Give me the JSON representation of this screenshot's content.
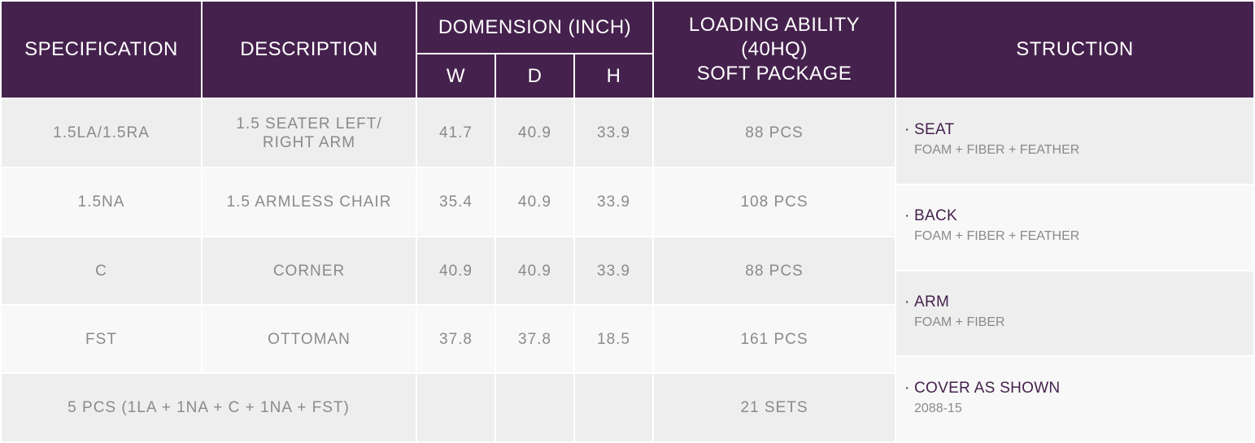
{
  "header": {
    "specification": "SPECIFICATION",
    "description": "DESCRIPTION",
    "dimension": "DOMENSION (INCH)",
    "w": "W",
    "d": "D",
    "h": "H",
    "loading_line1": "LOADING ABILITY",
    "loading_line2": "(40HQ)",
    "loading_line3": "SOFT PACKAGE",
    "structure": "STRUCTION"
  },
  "rows": [
    {
      "spec": "1.5LA/1.5RA",
      "desc_line1": "1.5 SEATER LEFT/",
      "desc_line2": "RIGHT ARM",
      "w": "41.7",
      "d": "40.9",
      "h": "33.9",
      "loading": "88 PCS"
    },
    {
      "spec": "1.5NA",
      "desc_line1": "1.5 ARMLESS CHAIR",
      "desc_line2": "",
      "w": "35.4",
      "d": "40.9",
      "h": "33.9",
      "loading": "108 PCS"
    },
    {
      "spec": "C",
      "desc_line1": "CORNER",
      "desc_line2": "",
      "w": "40.9",
      "d": "40.9",
      "h": "33.9",
      "loading": "88 PCS"
    },
    {
      "spec": "FST",
      "desc_line1": "OTTOMAN",
      "desc_line2": "",
      "w": "37.8",
      "d": "37.8",
      "h": "18.5",
      "loading": "161 PCS"
    }
  ],
  "set_row": {
    "label": "5 PCS (1LA + 1NA + C + 1NA + FST)",
    "loading": "21 SETS"
  },
  "structure": [
    {
      "bullet": "·",
      "title": "SEAT",
      "detail": "FOAM + FIBER + FEATHER"
    },
    {
      "bullet": "·",
      "title": "BACK",
      "detail": "FOAM + FIBER + FEATHER"
    },
    {
      "bullet": "·",
      "title": "ARM",
      "detail": "FOAM + FIBER"
    },
    {
      "bullet": "·",
      "title": "COVER AS SHOWN",
      "detail": "2088-15"
    }
  ],
  "colors": {
    "header_bg": "#45214d",
    "row_dark": "#eeeeee",
    "row_light": "#f8f8f8",
    "text_gray": "#8a8a8a",
    "accent": "#45214d"
  }
}
